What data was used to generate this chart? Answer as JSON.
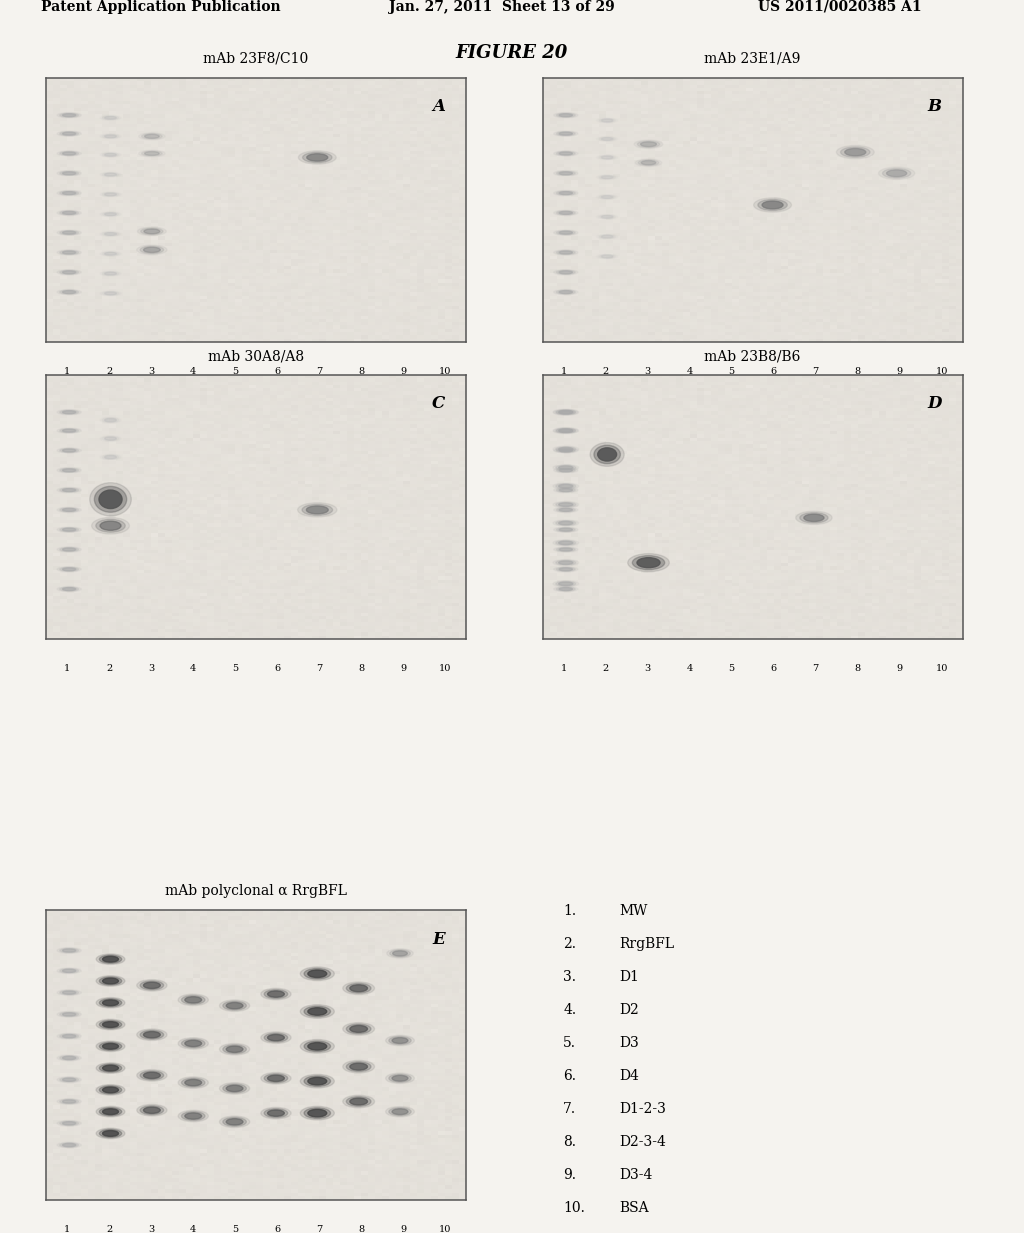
{
  "header_left": "Patent Application Publication",
  "header_center": "Jan. 27, 2011  Sheet 13 of 29",
  "header_right": "US 2011/0020385 A1",
  "figure_title": "FIGURE 20",
  "panel_titles": [
    "mAb 23F8/C10",
    "mAb 23E1/A9",
    "mAb 30A8/A8",
    "mAb 23B8/B6",
    "mAb polyclonal α RrgBFL"
  ],
  "panel_labels": [
    "A",
    "B",
    "C",
    "D",
    "E"
  ],
  "x_tick_labels": [
    "1",
    "2",
    "3",
    "4",
    "5",
    "6",
    "7",
    "8",
    "9",
    "10"
  ],
  "legend_items": [
    [
      "1.",
      "MW"
    ],
    [
      "2.",
      "RrgBFL"
    ],
    [
      "3.",
      "D1"
    ],
    [
      "4.",
      "D2"
    ],
    [
      "5.",
      "D3"
    ],
    [
      "6.",
      "D4"
    ],
    [
      "7.",
      "D1-2-3"
    ],
    [
      "8.",
      "D2-3-4"
    ],
    [
      "9.",
      "D3-4"
    ],
    [
      "10.",
      "BSA"
    ]
  ],
  "bg_color": "#f5f3ef",
  "gel_bg": "#ede9e2",
  "border_color": "#555555",
  "header_font_size": 10,
  "title_font_size": 10,
  "figure_title_font_size": 13,
  "label_font_size": 8,
  "legend_font_size": 10,
  "panel_label_font_size": 12
}
